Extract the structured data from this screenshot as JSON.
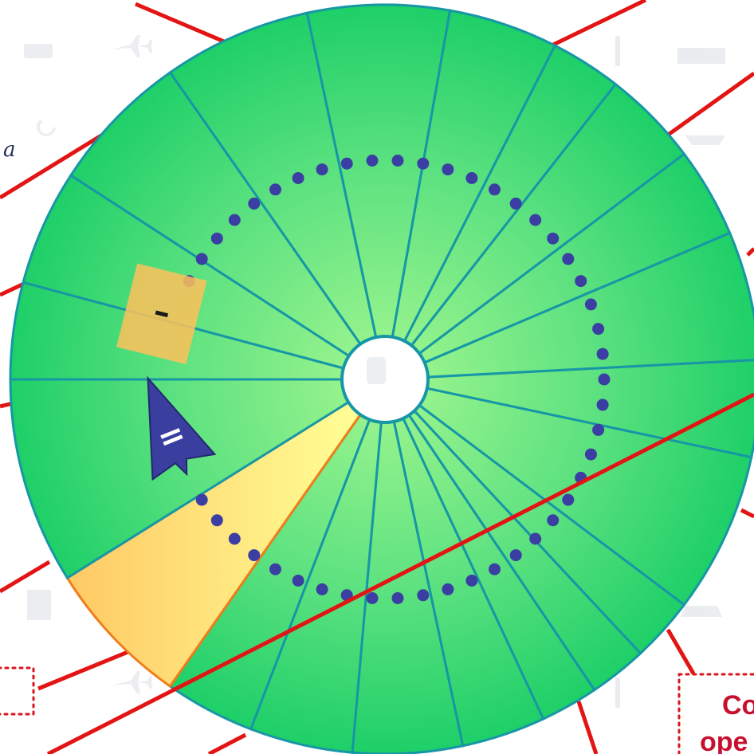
{
  "diagram": {
    "wheel": {
      "segment_count": 16,
      "selected_segment_label": "–",
      "selected_fill": "#ffd25a",
      "segment_fill_light": "#9cf58e",
      "segment_fill_dark": "#1ecf68",
      "segment_stroke": "#1797a6",
      "center_hub_fill": "#ffffff"
    },
    "pointer": {
      "label": "=",
      "fill": "#3a3f9f"
    },
    "dotted_ring": {
      "dot_color": "#3b3fa3"
    },
    "callout": {
      "text_line1": "Co",
      "text_line2": "ope",
      "border_color": "#d7161e"
    },
    "left_note": {
      "text": "a"
    },
    "line_color": "#e31414"
  }
}
